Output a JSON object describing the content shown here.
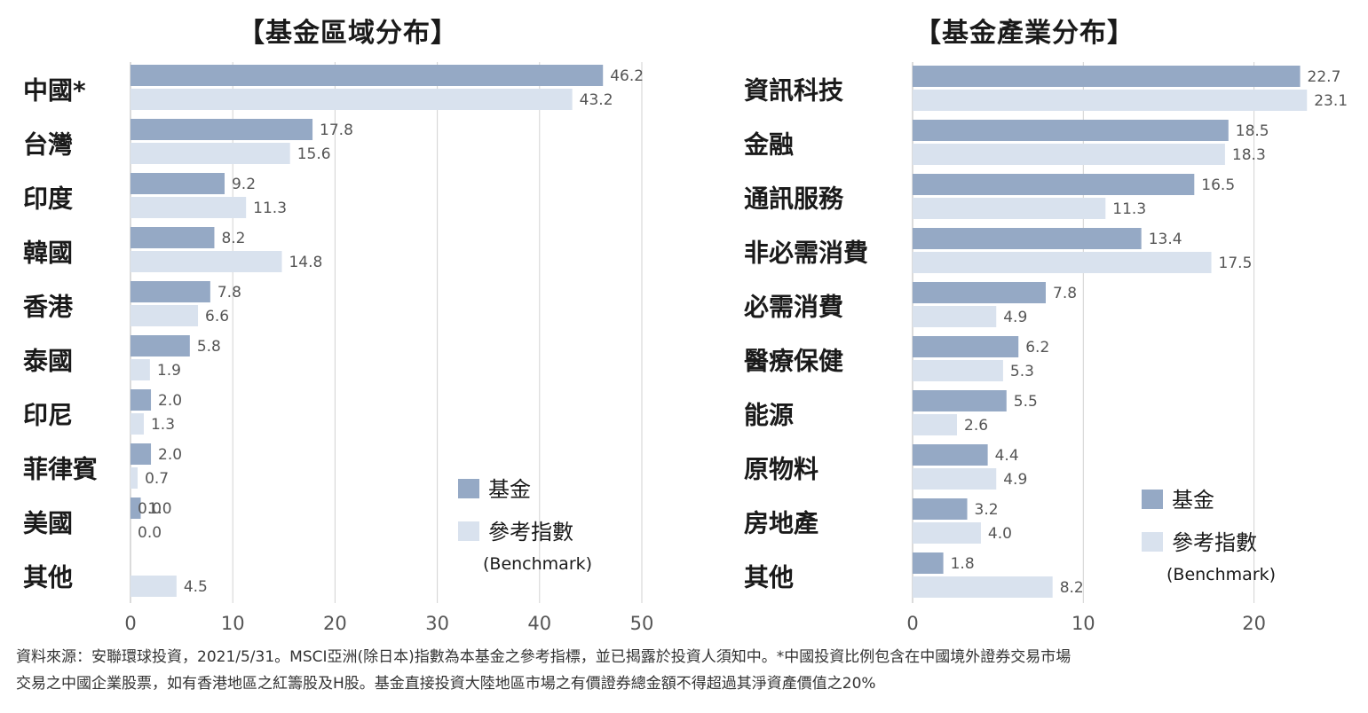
{
  "colors": {
    "fund": "#95a9c5",
    "benchmark": "#d9e2ee",
    "grid": "#d2d2d2",
    "axis_text": "#555555",
    "value_text": "#555555"
  },
  "chart_data": [
    {
      "type": "bar",
      "orientation": "horizontal",
      "title": "【基金區域分布】",
      "categories": [
        "中國*",
        "台灣",
        "印度",
        "韓國",
        "香港",
        "泰國",
        "印尼",
        "菲律賓",
        "美國",
        "其他"
      ],
      "series": [
        {
          "name": "基金",
          "values": [
            46.2,
            17.8,
            9.2,
            8.2,
            7.8,
            5.8,
            2.0,
            2.0,
            1.0,
            null
          ]
        },
        {
          "name": "參考指數",
          "values": [
            43.2,
            15.6,
            11.3,
            14.8,
            6.6,
            1.9,
            1.3,
            0.7,
            0.0,
            4.5
          ]
        }
      ],
      "value_labels": {
        "fund": [
          "46.2",
          "17.8",
          "9.2",
          "8.2",
          "7.8",
          "5.8",
          "2.0",
          "2.0",
          "1.0",
          ""
        ],
        "benchmark": [
          "43.2",
          "15.6",
          "11.3",
          "14.8",
          "6.6",
          "1.9",
          "1.3",
          "0.7",
          "0.0",
          "4.5"
        ],
        "extra_us_fund": "0.0"
      },
      "xlim": [
        0,
        50
      ],
      "xticks": [
        "0",
        "10",
        "20",
        "30",
        "40",
        "50"
      ],
      "grid": true,
      "legend": {
        "placement": "bottom-right",
        "fund_label": "基金",
        "benchmark_label": "參考指數",
        "benchmark_sub": "(Benchmark)"
      }
    },
    {
      "type": "bar",
      "orientation": "horizontal",
      "title": "【基金產業分布】",
      "categories": [
        "資訊科技",
        "金融",
        "通訊服務",
        "非必需消費",
        "必需消費",
        "醫療保健",
        "能源",
        "原物料",
        "房地產",
        "其他"
      ],
      "series": [
        {
          "name": "基金",
          "values": [
            22.7,
            18.5,
            16.5,
            13.4,
            7.8,
            6.2,
            5.5,
            4.4,
            3.2,
            1.8
          ]
        },
        {
          "name": "參考指數",
          "values": [
            23.1,
            18.3,
            11.3,
            17.5,
            4.9,
            5.3,
            2.6,
            4.9,
            4.0,
            8.2
          ]
        }
      ],
      "value_labels": {
        "fund": [
          "22.7",
          "18.5",
          "16.5",
          "13.4",
          "7.8",
          "6.2",
          "5.5",
          "4.4",
          "3.2",
          "1.8"
        ],
        "benchmark": [
          "23.1",
          "18.3",
          "11.3",
          "17.5",
          "4.9",
          "5.3",
          "2.6",
          "4.9",
          "4.0",
          "8.2"
        ]
      },
      "xlim": [
        0,
        26
      ],
      "xticks": [
        "0",
        "10",
        "20"
      ],
      "grid": true,
      "legend": {
        "placement": "bottom-right",
        "fund_label": "基金",
        "benchmark_label": "參考指數",
        "benchmark_sub": "(Benchmark)"
      }
    }
  ],
  "footnote": {
    "line1": "資料來源：安聯環球投資，2021/5/31。MSCI亞洲(除日本)指數為本基金之參考指標，並已揭露於投資人須知中。*中國投資比例包含在中國境外證券交易市場",
    "line2": "交易之中國企業股票，如有香港地區之紅籌股及H股。基金直接投資大陸地區市場之有價證券總金額不得超過其淨資產價值之20%"
  }
}
